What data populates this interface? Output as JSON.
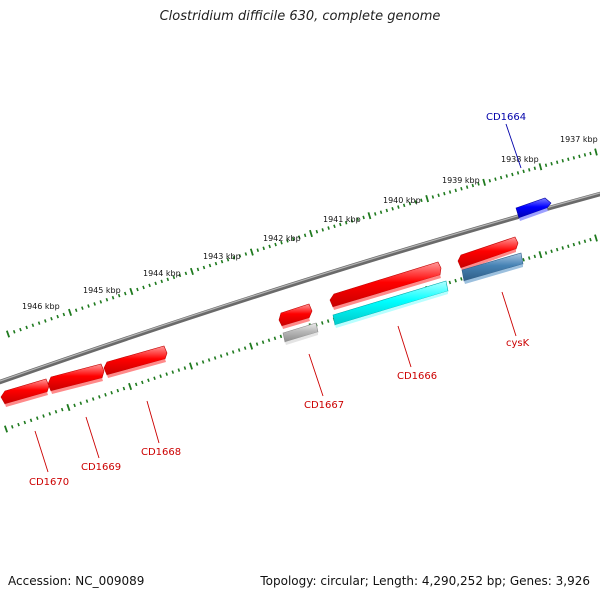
{
  "title": "Clostridium difficile 630, complete genome",
  "footer": {
    "accession": "Accession: NC_009089",
    "summary": "Topology: circular; Length: 4,290,252 bp; Genes: 3,926"
  },
  "scale_labels": [
    "1937 kbp",
    "1938 kbp",
    "1939 kbp",
    "1940 kbp",
    "1941 kbp",
    "1942 kbp",
    "1943 kbp",
    "1944 kbp",
    "1945 kbp",
    "1946 kbp"
  ],
  "gene_labels": [
    "CD1664",
    "cysK",
    "CD1666",
    "CD1667",
    "CD1668",
    "CD1669",
    "CD1670"
  ],
  "colors": {
    "backbone": "#808080",
    "ticks": "#1f7a1f",
    "forward_cds": "#ff0000",
    "reverse_cds": "#ff0000",
    "selected_gene": "#0000ff",
    "rna": "#00ffff",
    "gray_feature": "#b0b0b0",
    "steelblue_feature": "#4682b4",
    "label_red": "#cc0000",
    "label_blue": "#0000aa"
  }
}
